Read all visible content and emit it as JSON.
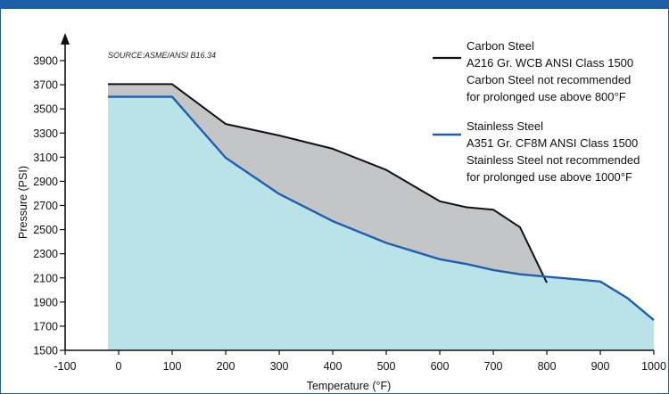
{
  "chart_data": {
    "type": "area",
    "source": "SOURCE:ASME/ANSI B16.34",
    "xlabel": "Temperature (°F)",
    "ylabel": "Pressure (PSI)",
    "xlim": [
      -100,
      1000
    ],
    "ylim": [
      1500,
      4000
    ],
    "x_ticks": [
      "-100",
      "0",
      "100",
      "200",
      "300",
      "400",
      "500",
      "600",
      "700",
      "800",
      "900",
      "1000"
    ],
    "y_ticks": [
      "1500",
      "1700",
      "1900",
      "2100",
      "2300",
      "2500",
      "2700",
      "2900",
      "3100",
      "3300",
      "3500",
      "3700",
      "3900"
    ],
    "x_tick_values": [
      -100,
      0,
      100,
      200,
      300,
      400,
      500,
      600,
      700,
      800,
      900,
      1000
    ],
    "y_tick_values": [
      1500,
      1700,
      1900,
      2100,
      2300,
      2500,
      2700,
      2900,
      3100,
      3300,
      3500,
      3700,
      3900
    ],
    "grid": false,
    "legend_position": "top-right",
    "series": [
      {
        "name": "Carbon Steel",
        "lines": [
          "Carbon Steel",
          "A216 Gr. WCB ANSI Class 1500",
          "Carbon Steel not recommended",
          "for prolonged use above 800°F"
        ],
        "color": "#111111",
        "fill": "#c4c5c7",
        "x": [
          -20,
          100,
          200,
          300,
          400,
          500,
          600,
          650,
          700,
          750,
          800
        ],
        "y": [
          3705,
          3705,
          3375,
          3280,
          3170,
          2995,
          2735,
          2685,
          2665,
          2520,
          2060
        ]
      },
      {
        "name": "Stainless Steel",
        "lines": [
          "Stainless Steel",
          "A351 Gr. CF8M ANSI Class 1500",
          "Stainless Steel not recommended",
          "for prolonged use above 1000°F"
        ],
        "color": "#1f5fb0",
        "fill": "#b9e2e9",
        "x": [
          -20,
          100,
          200,
          300,
          400,
          500,
          600,
          650,
          700,
          750,
          800,
          850,
          900,
          950,
          1000
        ],
        "y": [
          3600,
          3600,
          3095,
          2795,
          2570,
          2390,
          2255,
          2215,
          2165,
          2130,
          2110,
          2090,
          2070,
          1935,
          1750
        ]
      }
    ]
  }
}
